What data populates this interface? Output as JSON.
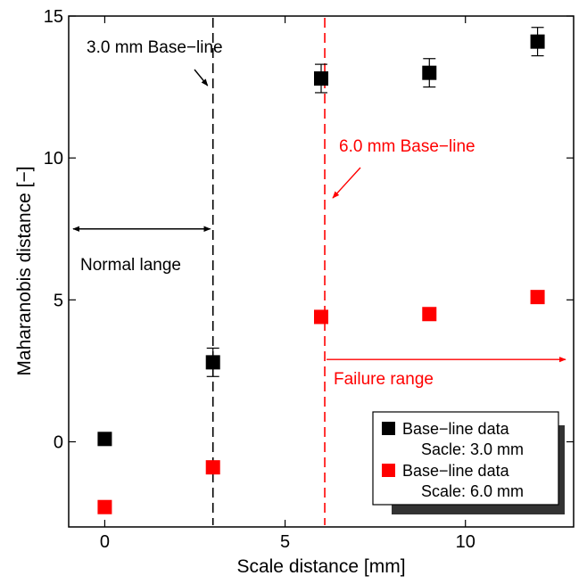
{
  "chart_data": {
    "type": "scatter",
    "xlabel": "Scale distance [mm]",
    "ylabel": "Maharanobis distance [−]",
    "xlim": [
      -1,
      13
    ],
    "ylim": [
      -3,
      15
    ],
    "xticks": [
      0,
      5,
      10
    ],
    "yticks": [
      0,
      5,
      10,
      15
    ],
    "grid": false,
    "legend_position": "bottom-right",
    "series": [
      {
        "name": "Base−line data",
        "detail": "Sacle: 3.0 mm",
        "color": "#000000",
        "marker": "square",
        "x": [
          0,
          3,
          6,
          9,
          12
        ],
        "y": [
          0.1,
          2.8,
          12.8,
          13.0,
          14.1
        ],
        "yerr": [
          0.1,
          0.5,
          0.5,
          0.5,
          0.5
        ]
      },
      {
        "name": "Base−line data",
        "detail": "Scale: 6.0 mm",
        "color": "#ff0000",
        "marker": "square",
        "x": [
          0,
          3,
          6,
          9,
          12
        ],
        "y": [
          -2.3,
          -0.9,
          4.4,
          4.5,
          5.1
        ]
      }
    ],
    "reference_lines": [
      {
        "x": 3.0,
        "color": "#000000",
        "style": "dashed"
      },
      {
        "x": 6.1,
        "color": "#ff0000",
        "style": "dashed"
      }
    ],
    "annotations": {
      "baseline_3": {
        "text": "3.0 mm Base−line",
        "color": "#000000"
      },
      "baseline_6": {
        "text": "6.0 mm Base−line",
        "color": "#ff0000"
      },
      "normal_range": {
        "text": "Normal lange",
        "color": "#000000",
        "x_from": -1,
        "x_to": 3.0,
        "y": 7.5
      },
      "failure_range": {
        "text": "Failure range",
        "color": "#ff0000",
        "x_from": 6.1,
        "x_to": 13,
        "y": 2.9
      }
    }
  }
}
